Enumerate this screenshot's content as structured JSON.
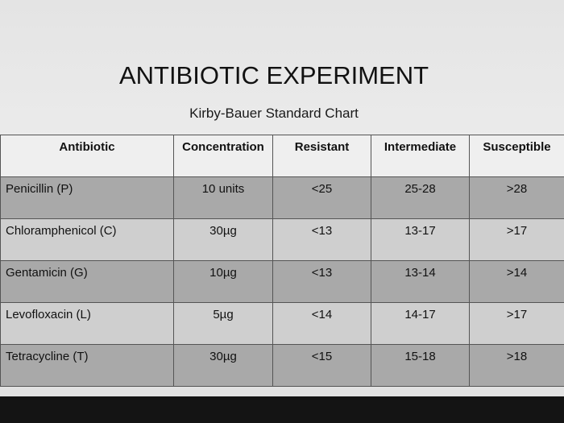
{
  "header": {
    "title": "ANTIBIOTIC EXPERIMENT",
    "subtitle": "Kirby-Bauer Standard Chart"
  },
  "table": {
    "columns": [
      "Antibiotic",
      "Concentration",
      "Resistant",
      "Intermediate",
      "Susceptible"
    ],
    "rows": [
      [
        "Penicillin (P)",
        "10 units",
        "<25",
        "25-28",
        ">28"
      ],
      [
        "Chloramphenicol (C)",
        "30µg",
        "<13",
        "13-17",
        ">17"
      ],
      [
        "Gentamicin (G)",
        "10µg",
        "<13",
        "13-14",
        ">14"
      ],
      [
        "Levofloxacin (L)",
        "5µg",
        "<14",
        "14-17",
        ">17"
      ],
      [
        "Tetracycline (T)",
        "30µg",
        "<15",
        "15-18",
        ">18"
      ]
    ]
  }
}
